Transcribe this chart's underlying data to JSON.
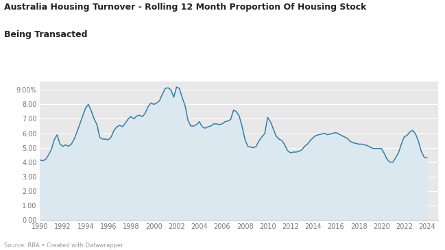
{
  "title_line1": "Australia Housing Turnover - Rolling 12 Month Proportion Of Housing Stock",
  "title_line2": "Being Transacted",
  "source_text": "Source: RBA • Created with Datawrapper",
  "line_color": "#2e7fa8",
  "fill_color": "#dce8ef",
  "background_color": "#e8e8e8",
  "outer_background": "#ffffff",
  "ylim": [
    0,
    9.6
  ],
  "ytick_vals": [
    0.0,
    1.0,
    2.0,
    3.0,
    4.0,
    5.0,
    6.0,
    7.0,
    8.0,
    9.0
  ],
  "ytick_labels": [
    "0.00",
    "1.00",
    "2.00",
    "3.00",
    "4.00",
    "5.00",
    "6.00",
    "7.00",
    "8.00",
    "9.00%"
  ],
  "xlim": [
    1990,
    2025
  ],
  "xticks": [
    1990,
    1992,
    1994,
    1996,
    1998,
    2000,
    2002,
    2004,
    2006,
    2008,
    2010,
    2012,
    2014,
    2016,
    2018,
    2020,
    2022,
    2024
  ],
  "years": [
    1990.0,
    1990.25,
    1990.5,
    1990.75,
    1991.0,
    1991.25,
    1991.5,
    1991.75,
    1992.0,
    1992.25,
    1992.5,
    1992.75,
    1993.0,
    1993.25,
    1993.5,
    1993.75,
    1994.0,
    1994.25,
    1994.5,
    1994.75,
    1995.0,
    1995.25,
    1995.5,
    1995.75,
    1996.0,
    1996.25,
    1996.5,
    1996.75,
    1997.0,
    1997.25,
    1997.5,
    1997.75,
    1998.0,
    1998.25,
    1998.5,
    1998.75,
    1999.0,
    1999.25,
    1999.5,
    1999.75,
    2000.0,
    2000.25,
    2000.5,
    2000.75,
    2001.0,
    2001.25,
    2001.5,
    2001.75,
    2002.0,
    2002.25,
    2002.5,
    2002.75,
    2003.0,
    2003.25,
    2003.5,
    2003.75,
    2004.0,
    2004.25,
    2004.5,
    2004.75,
    2005.0,
    2005.25,
    2005.5,
    2005.75,
    2006.0,
    2006.25,
    2006.5,
    2006.75,
    2007.0,
    2007.25,
    2007.5,
    2007.75,
    2008.0,
    2008.25,
    2008.5,
    2008.75,
    2009.0,
    2009.25,
    2009.5,
    2009.75,
    2010.0,
    2010.25,
    2010.5,
    2010.75,
    2011.0,
    2011.25,
    2011.5,
    2011.75,
    2012.0,
    2012.25,
    2012.5,
    2012.75,
    2013.0,
    2013.25,
    2013.5,
    2013.75,
    2014.0,
    2014.25,
    2014.5,
    2014.75,
    2015.0,
    2015.25,
    2015.5,
    2015.75,
    2016.0,
    2016.25,
    2016.5,
    2016.75,
    2017.0,
    2017.25,
    2017.5,
    2017.75,
    2018.0,
    2018.25,
    2018.5,
    2018.75,
    2019.0,
    2019.25,
    2019.5,
    2019.75,
    2020.0,
    2020.25,
    2020.5,
    2020.75,
    2021.0,
    2021.25,
    2021.5,
    2021.75,
    2022.0,
    2022.25,
    2022.5,
    2022.75,
    2023.0,
    2023.25,
    2023.5,
    2023.75,
    2024.0
  ],
  "values": [
    4.15,
    4.1,
    4.2,
    4.5,
    4.9,
    5.55,
    5.9,
    5.25,
    5.1,
    5.2,
    5.1,
    5.25,
    5.6,
    6.1,
    6.65,
    7.2,
    7.75,
    8.0,
    7.55,
    7.0,
    6.6,
    5.7,
    5.6,
    5.6,
    5.55,
    5.75,
    6.2,
    6.45,
    6.55,
    6.45,
    6.7,
    7.0,
    7.15,
    7.0,
    7.2,
    7.25,
    7.15,
    7.4,
    7.85,
    8.1,
    8.0,
    8.1,
    8.25,
    8.7,
    9.1,
    9.15,
    9.0,
    8.5,
    9.2,
    9.1,
    8.45,
    7.9,
    6.9,
    6.5,
    6.5,
    6.6,
    6.8,
    6.45,
    6.35,
    6.45,
    6.5,
    6.65,
    6.65,
    6.6,
    6.65,
    6.8,
    6.85,
    6.95,
    7.6,
    7.5,
    7.2,
    6.5,
    5.6,
    5.1,
    5.05,
    5.0,
    5.1,
    5.5,
    5.75,
    6.0,
    7.1,
    6.8,
    6.3,
    5.8,
    5.6,
    5.5,
    5.2,
    4.8,
    4.65,
    4.7,
    4.7,
    4.75,
    4.85,
    5.1,
    5.25,
    5.5,
    5.7,
    5.85,
    5.9,
    5.95,
    6.0,
    5.9,
    5.95,
    6.0,
    6.05,
    5.95,
    5.85,
    5.75,
    5.65,
    5.45,
    5.35,
    5.3,
    5.25,
    5.25,
    5.2,
    5.15,
    5.05,
    4.95,
    4.95,
    4.95,
    4.95,
    4.6,
    4.2,
    4.0,
    4.0,
    4.3,
    4.65,
    5.25,
    5.75,
    5.85,
    6.1,
    6.2,
    5.95,
    5.45,
    4.75,
    4.35,
    4.3
  ]
}
